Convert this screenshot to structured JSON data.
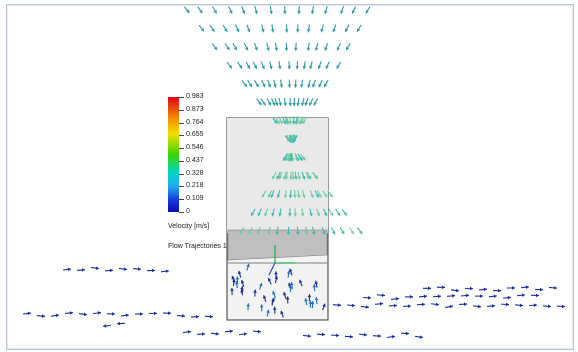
{
  "legend": {
    "ticks": [
      "0.983",
      "0.873",
      "0.764",
      "0.655",
      "0.546",
      "0.437",
      "0.328",
      "0.218",
      "0.109",
      "0"
    ],
    "unit_label": "Velocity [m/s]",
    "trajectory_label": "Flow Trajectories 1"
  },
  "colors": {
    "high": "#e0001a",
    "mid": "#3bd400",
    "low": "#0a0ca8",
    "vector_teal": "#2a9aa8",
    "vector_blue": "#1a2a9c",
    "vessel_outline": "#333333"
  }
}
